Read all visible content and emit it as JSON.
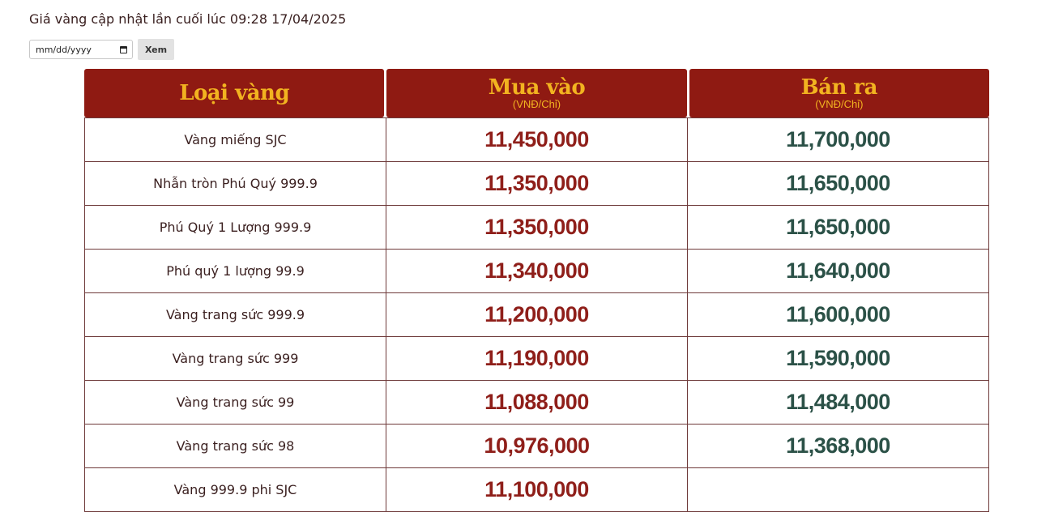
{
  "header": {
    "update_text": "Giá vàng cập nhật lần cuối lúc 09:28 17/04/2025"
  },
  "filter": {
    "date_placeholder": "mm/dd/yyyy",
    "view_label": "Xem"
  },
  "table": {
    "columns": {
      "type": {
        "title": "Loại vàng"
      },
      "buy": {
        "title": "Mua vào",
        "unit": "(VNĐ/Chỉ)"
      },
      "sell": {
        "title": "Bán ra",
        "unit": "(VNĐ/Chỉ)"
      }
    },
    "rows": [
      {
        "name": "Vàng miếng SJC",
        "buy": "11,450,000",
        "sell": "11,700,000"
      },
      {
        "name": "Nhẫn tròn Phú Quý 999.9",
        "buy": "11,350,000",
        "sell": "11,650,000"
      },
      {
        "name": "Phú Quý 1 Lượng 999.9",
        "buy": "11,350,000",
        "sell": "11,650,000"
      },
      {
        "name": "Phú quý 1 lượng 99.9",
        "buy": "11,340,000",
        "sell": "11,640,000"
      },
      {
        "name": "Vàng trang sức 999.9",
        "buy": "11,200,000",
        "sell": "11,600,000"
      },
      {
        "name": "Vàng trang sức 999",
        "buy": "11,190,000",
        "sell": "11,590,000"
      },
      {
        "name": "Vàng trang sức 99",
        "buy": "11,088,000",
        "sell": "11,484,000"
      },
      {
        "name": "Vàng trang sức 98",
        "buy": "10,976,000",
        "sell": "11,368,000"
      },
      {
        "name": "Vàng 999.9 phi SJC",
        "buy": "11,100,000",
        "sell": ""
      }
    ]
  },
  "colors": {
    "header_bg": "#8f1a12",
    "header_text": "#f2b320",
    "buy_text": "#8f1f1a",
    "sell_text": "#2b5147"
  },
  "icons": {
    "calendar": "calendar-icon"
  }
}
